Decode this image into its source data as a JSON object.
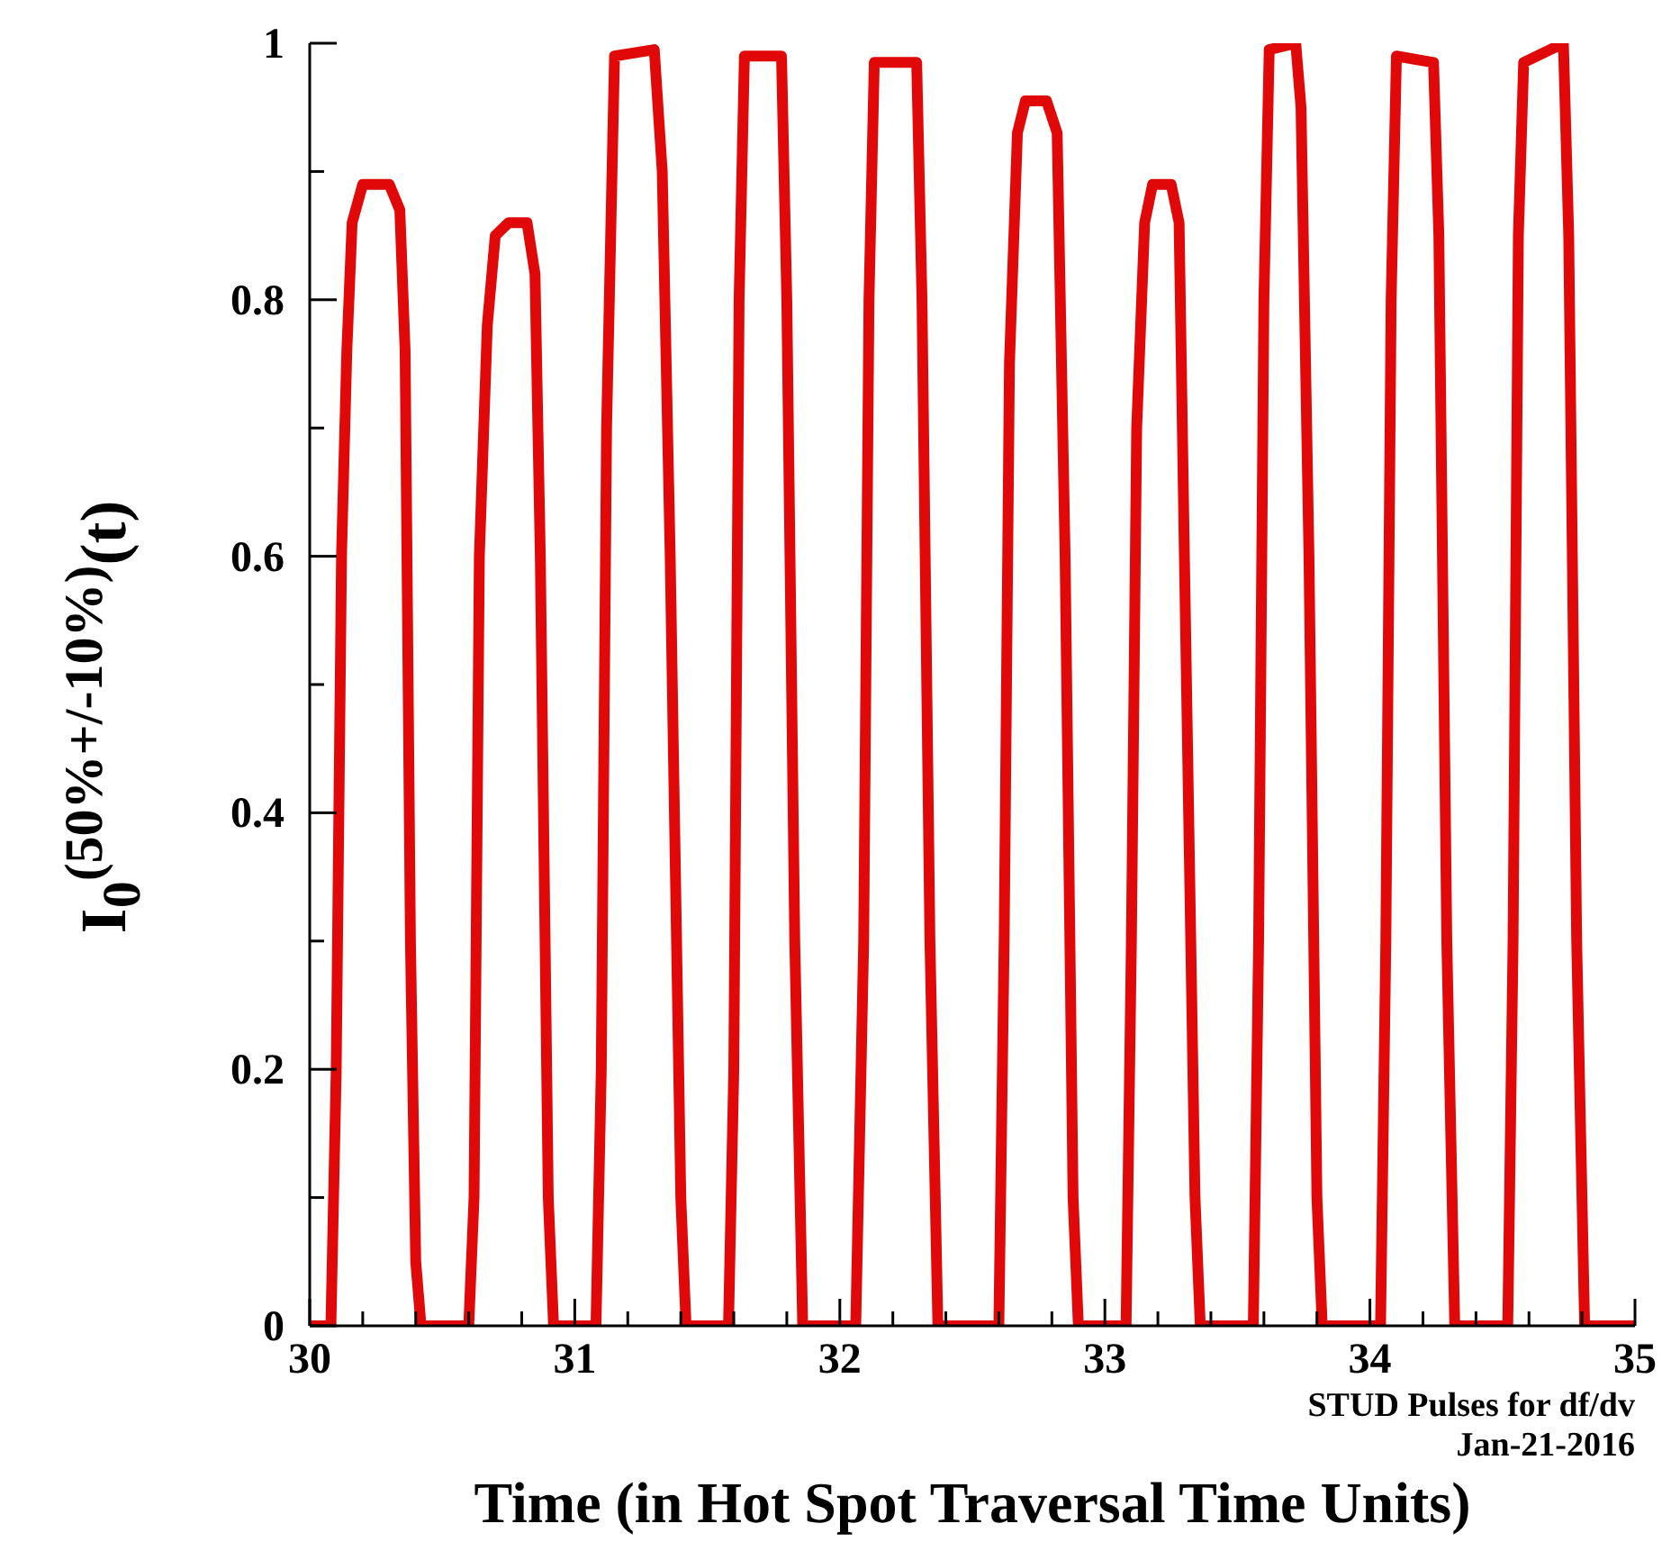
{
  "chart_data": {
    "type": "line",
    "xlabel": "Time (in Hot Spot Traversal Time Units)",
    "ylabel": "I$_{0}$$^{(50%+/-10%)}$(t)",
    "annotations": [
      "STUD Pulses for df/dv",
      "Jan-21-2016"
    ],
    "marker": "none",
    "xlim": [
      30,
      35
    ],
    "xticks": [
      30,
      {
        "value": 30.2,
        "label": null
      },
      {
        "value": 30.4,
        "label": null
      },
      {
        "value": 30.6,
        "label": null
      },
      {
        "value": 30.8,
        "label": null
      },
      31,
      {
        "value": 31.2,
        "label": null
      },
      {
        "value": 31.4,
        "label": null
      },
      {
        "value": 31.6,
        "label": null
      },
      {
        "value": 31.8,
        "label": null
      },
      32,
      {
        "value": 32.2,
        "label": null
      },
      {
        "value": 32.4,
        "label": null
      },
      {
        "value": 32.6,
        "label": null
      },
      {
        "value": 32.8,
        "label": null
      },
      33,
      {
        "value": 33.2,
        "label": null
      },
      {
        "value": 33.4,
        "label": null
      },
      {
        "value": 33.6,
        "label": null
      },
      {
        "value": 33.8,
        "label": null
      },
      34,
      {
        "value": 34.2,
        "label": null
      },
      {
        "value": 34.4,
        "label": null
      },
      {
        "value": 34.6,
        "label": null
      },
      {
        "value": 34.8,
        "label": null
      },
      35
    ],
    "ylim": [
      0,
      1
    ],
    "yticks": [
      0,
      {
        "value": 0.1,
        "label": null
      },
      0.2,
      {
        "value": 0.3,
        "label": null
      },
      0.4,
      {
        "value": 0.5,
        "label": null
      },
      0.6,
      {
        "value": 0.7,
        "label": null
      },
      0.8,
      {
        "value": 0.9,
        "label": null
      },
      1
    ],
    "series": [
      {
        "color": "#e00808",
        "x": [
          30,
          30.08,
          30.1,
          30.12,
          30.14,
          30.16,
          30.2,
          30.3,
          30.34,
          30.36,
          30.38,
          30.4,
          30.42,
          30.6,
          30.62,
          30.64,
          30.67,
          30.7,
          30.75,
          30.82,
          30.85,
          30.87,
          30.9,
          30.92,
          31.08,
          31.1,
          31.12,
          31.15,
          31.3,
          31.33,
          31.36,
          31.4,
          31.42,
          31.58,
          31.6,
          31.62,
          31.64,
          31.78,
          31.8,
          31.83,
          31.86,
          32.06,
          32.09,
          32.11,
          32.13,
          32.29,
          32.31,
          32.34,
          32.37,
          32.6,
          32.62,
          32.64,
          32.67,
          32.7,
          32.78,
          32.82,
          32.85,
          32.88,
          32.9,
          33.08,
          33.1,
          33.12,
          33.15,
          33.18,
          33.25,
          33.28,
          33.3,
          33.34,
          33.36,
          33.56,
          33.58,
          33.6,
          33.62,
          33.72,
          33.74,
          33.77,
          33.8,
          33.82,
          34.04,
          34.06,
          34.08,
          34.1,
          34.24,
          34.26,
          34.29,
          34.32,
          34.52,
          34.54,
          34.56,
          34.58,
          34.73,
          34.75,
          34.78,
          34.81,
          35
        ],
        "values": [
          0,
          0,
          0.2,
          0.6,
          0.76,
          0.86,
          0.89,
          0.89,
          0.87,
          0.76,
          0.3,
          0.05,
          0,
          0,
          0.1,
          0.6,
          0.78,
          0.85,
          0.86,
          0.86,
          0.82,
          0.6,
          0.1,
          0,
          0,
          0.2,
          0.7,
          0.99,
          0.995,
          0.9,
          0.6,
          0.1,
          0,
          0,
          0.2,
          0.8,
          0.99,
          0.99,
          0.8,
          0.3,
          0,
          0,
          0.3,
          0.8,
          0.985,
          0.985,
          0.8,
          0.3,
          0,
          0,
          0.3,
          0.75,
          0.93,
          0.955,
          0.955,
          0.93,
          0.6,
          0.1,
          0,
          0,
          0.3,
          0.7,
          0.86,
          0.89,
          0.89,
          0.86,
          0.6,
          0.1,
          0,
          0,
          0.3,
          0.8,
          0.995,
          1,
          0.95,
          0.6,
          0.1,
          0,
          0,
          0.3,
          0.8,
          0.99,
          0.985,
          0.85,
          0.3,
          0,
          0,
          0.3,
          0.85,
          0.985,
          1,
          0.85,
          0.3,
          0,
          0
        ]
      }
    ]
  }
}
